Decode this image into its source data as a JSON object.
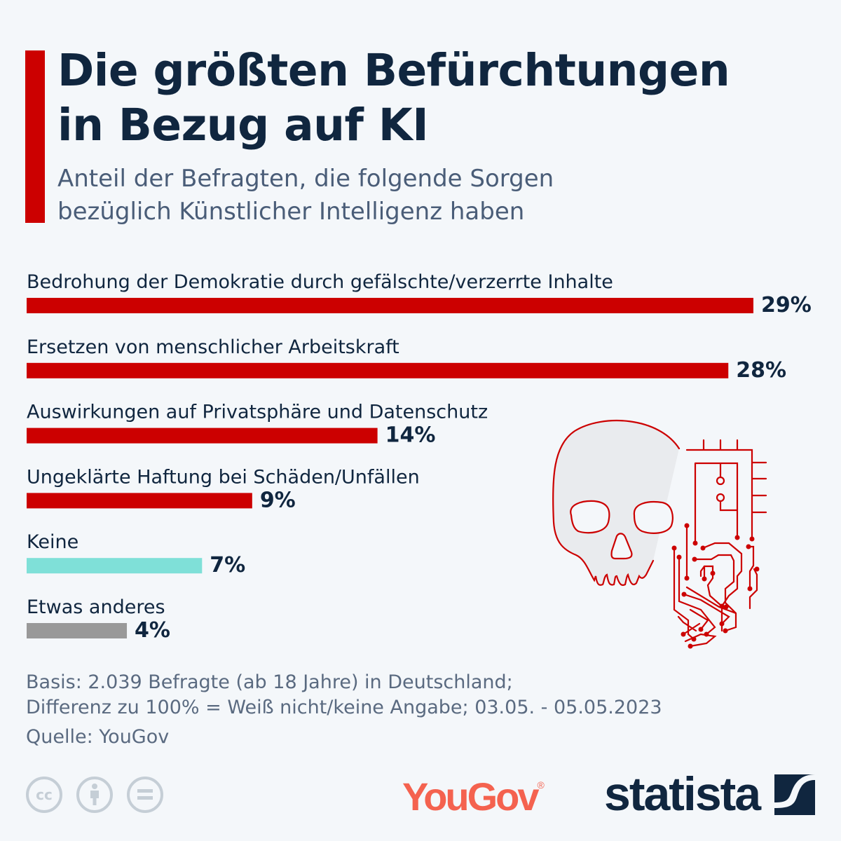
{
  "header": {
    "title_line1": "Die größten Befürchtungen",
    "title_line2": "in Bezug auf KI",
    "subtitle_line1": "Anteil der Befragten, die folgende Sorgen",
    "subtitle_line2": "bezüglich Künstlicher Intelligenz haben"
  },
  "chart_data": {
    "type": "bar",
    "orientation": "horizontal",
    "categories": [
      "Bedrohung der Demokratie durch gefälschte/verzerrte Inhalte",
      "Ersetzen von menschlicher Arbeitskraft",
      "Auswirkungen auf Privatsphäre und Datenschutz",
      "Ungeklärte Haftung bei Schäden/Unfällen",
      "Keine",
      "Etwas anderes"
    ],
    "values": [
      29,
      28,
      14,
      9,
      7,
      4
    ],
    "labels": [
      "29%",
      "28%",
      "14%",
      "9%",
      "7%",
      "4%"
    ],
    "colors": [
      "#cc0000",
      "#cc0000",
      "#cc0000",
      "#cc0000",
      "#7fe0d8",
      "#999999"
    ],
    "unit": "%",
    "grid": false
  },
  "footer": {
    "basis_line1": "Basis: 2.039 Befragte (ab 18 Jahre) in Deutschland;",
    "basis_line2": "Differenz zu 100% = Weiß nicht/keine Angabe; 03.05. - 05.05.2023",
    "source": "Quelle: YouGov",
    "cc_icons": [
      "cc-icon",
      "attribution-icon",
      "no-derivatives-icon"
    ],
    "cc_label": "cc",
    "yougov_logo": "YouGov",
    "statista_logo": "statista"
  },
  "colors": {
    "accent": "#cc0000",
    "title": "#10263f",
    "background": "#f4f7fa"
  }
}
